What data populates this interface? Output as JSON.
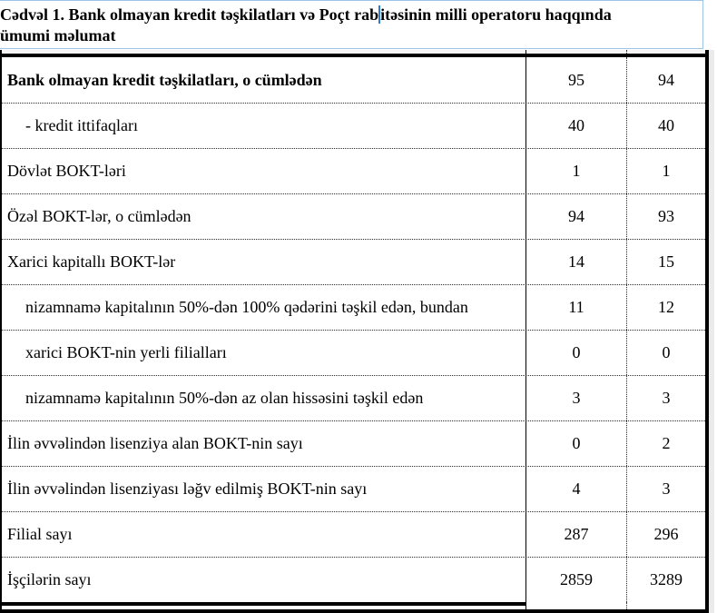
{
  "title": {
    "full_text": "Cədvəl 1. Bank olmayan kredit təşkilatları və Poçt rabitəsinin milli operatoru haqqında ümumi məlumat",
    "line1_before_caret": " Cədvəl 1. Bank olmayan kredit təşkilatları və Poçt rab",
    "line1_after_caret": "itəsinin milli operatoru haqqında",
    "line2": "ümumi məlumat"
  },
  "table": {
    "rows": [
      {
        "label": "Bank olmayan kredit təşkilatları, o cümlədən",
        "v1": "95",
        "v2": "94",
        "bold": true,
        "indent": false
      },
      {
        "label": "- kredit ittifaqları",
        "v1": "40",
        "v2": "40",
        "bold": false,
        "indent": true
      },
      {
        "label": "Dövlət BOKT-ləri",
        "v1": "1",
        "v2": "1",
        "bold": false,
        "indent": false
      },
      {
        "label": "Özəl BOKT-lər, o cümlədən",
        "v1": "94",
        "v2": "93",
        "bold": false,
        "indent": false
      },
      {
        "label": "Xarici kapitallı BOKT-lər",
        "v1": "14",
        "v2": "15",
        "bold": false,
        "indent": false
      },
      {
        "label": "nizamnamə kapitalının 50%-dən 100% qədərini təşkil edən, bundan",
        "v1": "11",
        "v2": "12",
        "bold": false,
        "indent": true
      },
      {
        "label": "xarici BOKT-nin yerli filialları",
        "v1": "0",
        "v2": "0",
        "bold": false,
        "indent": true
      },
      {
        "label": "nizamnamə kapitalının 50%-dən az olan hissəsini  təşkil edən",
        "v1": "3",
        "v2": "3",
        "bold": false,
        "indent": true
      },
      {
        "label": "İlin əvvəlindən lisenziya alan BOKT-nin sayı",
        "v1": "0",
        "v2": "2",
        "bold": false,
        "indent": false
      },
      {
        "label": "İlin əvvəlindən lisenziyası ləğv edilmiş BOKT-nin sayı",
        "v1": "4",
        "v2": "3",
        "bold": false,
        "indent": false
      },
      {
        "label": "Filial sayı",
        "v1": "287",
        "v2": "296",
        "bold": false,
        "indent": false
      },
      {
        "label": "İşçilərin sayı",
        "v1": "2859",
        "v2": "3289",
        "bold": false,
        "indent": false
      }
    ]
  },
  "colors": {
    "title_box_border": "#9dc3e6",
    "text_caret": "#2c7cd1",
    "table_border": "#000000",
    "right_band": "#ebebeb"
  }
}
